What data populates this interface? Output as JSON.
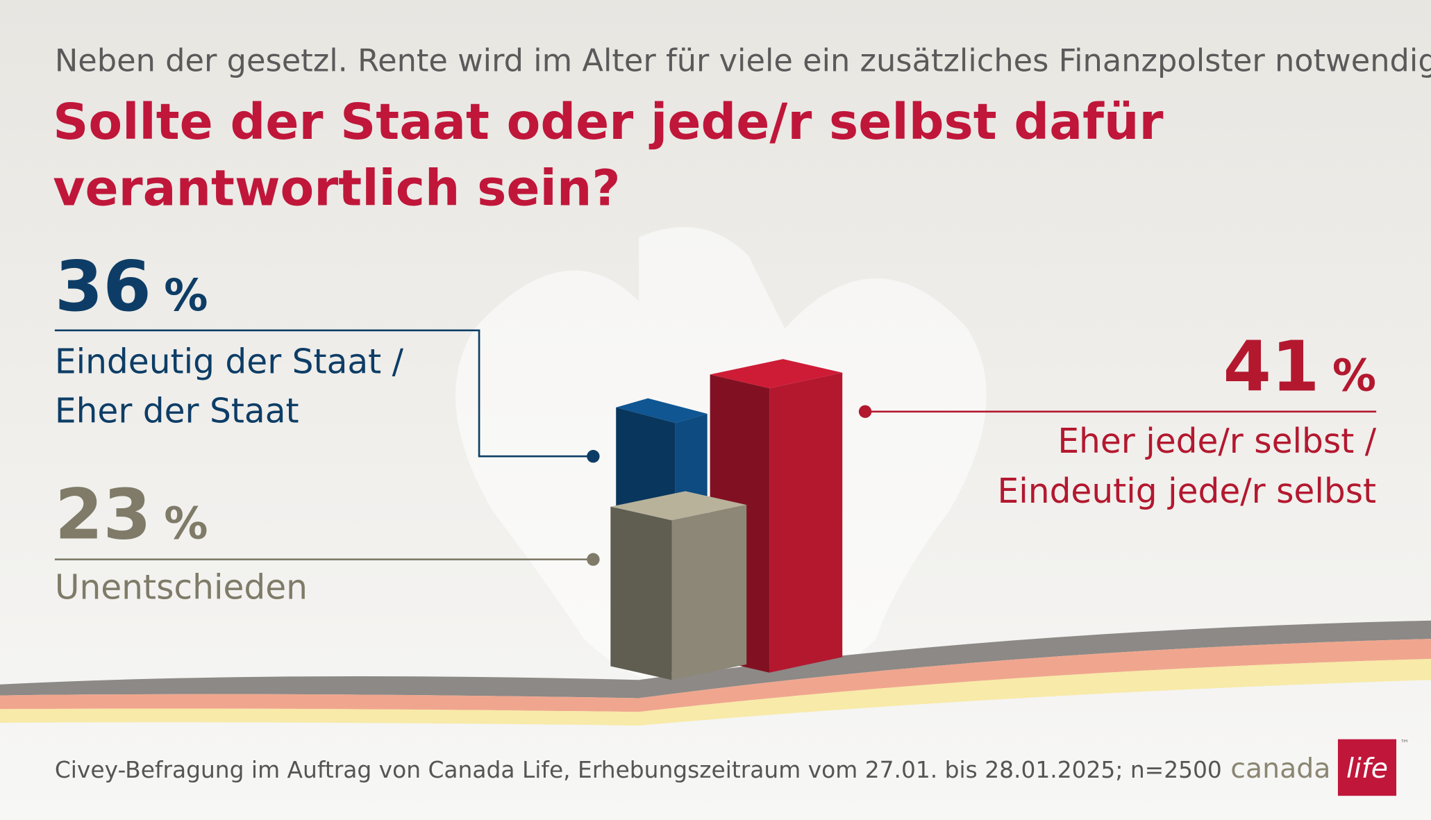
{
  "chart_data": {
    "type": "bar",
    "subtitle": "Neben der gesetzl. Rente wird im Alter für viele ein zusätzliches Finanzpolster notwendig sein.",
    "title": [
      "Sollte der Staat oder jede/r selbst dafür",
      "verantwortlich sein?"
    ],
    "unit": "%",
    "categories": [
      [
        "Eindeutig der Staat /",
        "Eher der Staat"
      ],
      [
        "Unentschieden"
      ],
      [
        "Eher jede/r selbst /",
        "Eindeutig jede/r selbst"
      ]
    ],
    "values": [
      36,
      23,
      41
    ],
    "colors": [
      "#0d4b80",
      "#858170",
      "#b3182f"
    ],
    "source": "Civey-Befragung im Auftrag von Canada Life, Erhebungszeitraum vom 27.01. bis 28.01.2025; n=2500"
  },
  "logo": {
    "word": "canada",
    "mark": "life",
    "trademark": "™"
  }
}
